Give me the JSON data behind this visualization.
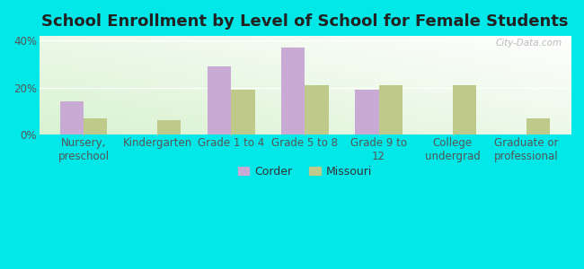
{
  "title": "School Enrollment by Level of School for Female Students",
  "categories": [
    "Nursery,\npreschool",
    "Kindergarten",
    "Grade 1 to 4",
    "Grade 5 to 8",
    "Grade 9 to\n12",
    "College\nundergrad",
    "Graduate or\nprofessional"
  ],
  "corder_values": [
    14,
    0,
    29,
    37,
    19,
    0,
    0
  ],
  "missouri_values": [
    7,
    6,
    19,
    21,
    21,
    21,
    7
  ],
  "corder_color": "#c9aad4",
  "missouri_color": "#bec98a",
  "ylim": [
    0,
    42
  ],
  "yticks": [
    0,
    20,
    40
  ],
  "ytick_labels": [
    "0%",
    "20%",
    "40%"
  ],
  "background_color": "#00e8e8",
  "bar_width": 0.32,
  "legend_labels": [
    "Corder",
    "Missouri"
  ],
  "watermark": "City-Data.com",
  "title_fontsize": 13,
  "tick_fontsize": 8.5,
  "legend_fontsize": 9
}
